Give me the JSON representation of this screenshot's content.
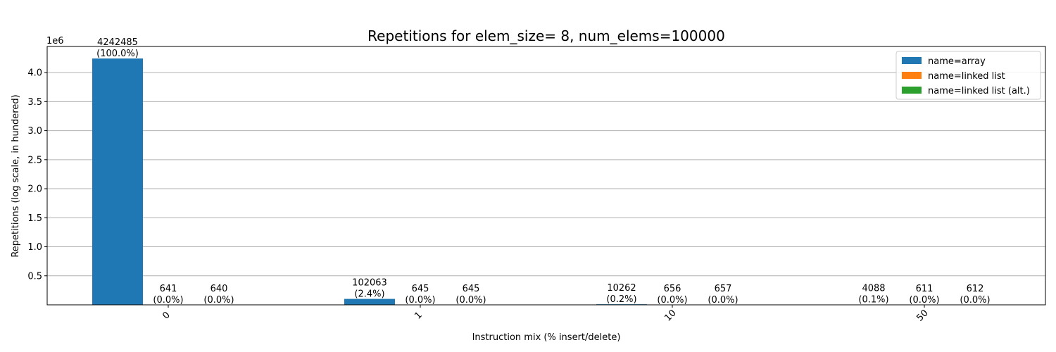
{
  "chart_data": {
    "type": "bar",
    "title": "Repetitions for elem_size= 8, num_elems=100000",
    "xlabel": "Instruction mix (% insert/delete)",
    "ylabel": "Repetitions (log scale, in hundered)",
    "offset_text": "1e6",
    "categories": [
      "0",
      "1",
      "10",
      "50"
    ],
    "ylim": [
      0,
      4450000
    ],
    "yticks": [
      {
        "value": 500000,
        "label": "0.5"
      },
      {
        "value": 1000000,
        "label": "1.0"
      },
      {
        "value": 1500000,
        "label": "1.5"
      },
      {
        "value": 2000000,
        "label": "2.0"
      },
      {
        "value": 2500000,
        "label": "2.5"
      },
      {
        "value": 3000000,
        "label": "3.0"
      },
      {
        "value": 3500000,
        "label": "3.5"
      },
      {
        "value": 4000000,
        "label": "4.0"
      }
    ],
    "grid": "y",
    "legend_position": "top-right",
    "series": [
      {
        "name": "name=array",
        "color": "#1f77b4",
        "values": [
          4242485,
          102063,
          10262,
          4088
        ],
        "labels": [
          [
            "4242485",
            "(100.0%)"
          ],
          [
            "102063",
            "(2.4%)"
          ],
          [
            "10262",
            "(0.2%)"
          ],
          [
            "4088",
            "(0.1%)"
          ]
        ]
      },
      {
        "name": "name=linked list",
        "color": "#ff7f0e",
        "values": [
          641,
          645,
          656,
          611
        ],
        "labels": [
          [
            "641",
            "(0.0%)"
          ],
          [
            "645",
            "(0.0%)"
          ],
          [
            "656",
            "(0.0%)"
          ],
          [
            "611",
            "(0.0%)"
          ]
        ]
      },
      {
        "name": "name=linked list (alt.)",
        "color": "#2ca02c",
        "values": [
          640,
          645,
          657,
          612
        ],
        "labels": [
          [
            "640",
            "(0.0%)"
          ],
          [
            "645",
            "(0.0%)"
          ],
          [
            "657",
            "(0.0%)"
          ],
          [
            "612",
            "(0.0%)"
          ]
        ]
      }
    ]
  }
}
